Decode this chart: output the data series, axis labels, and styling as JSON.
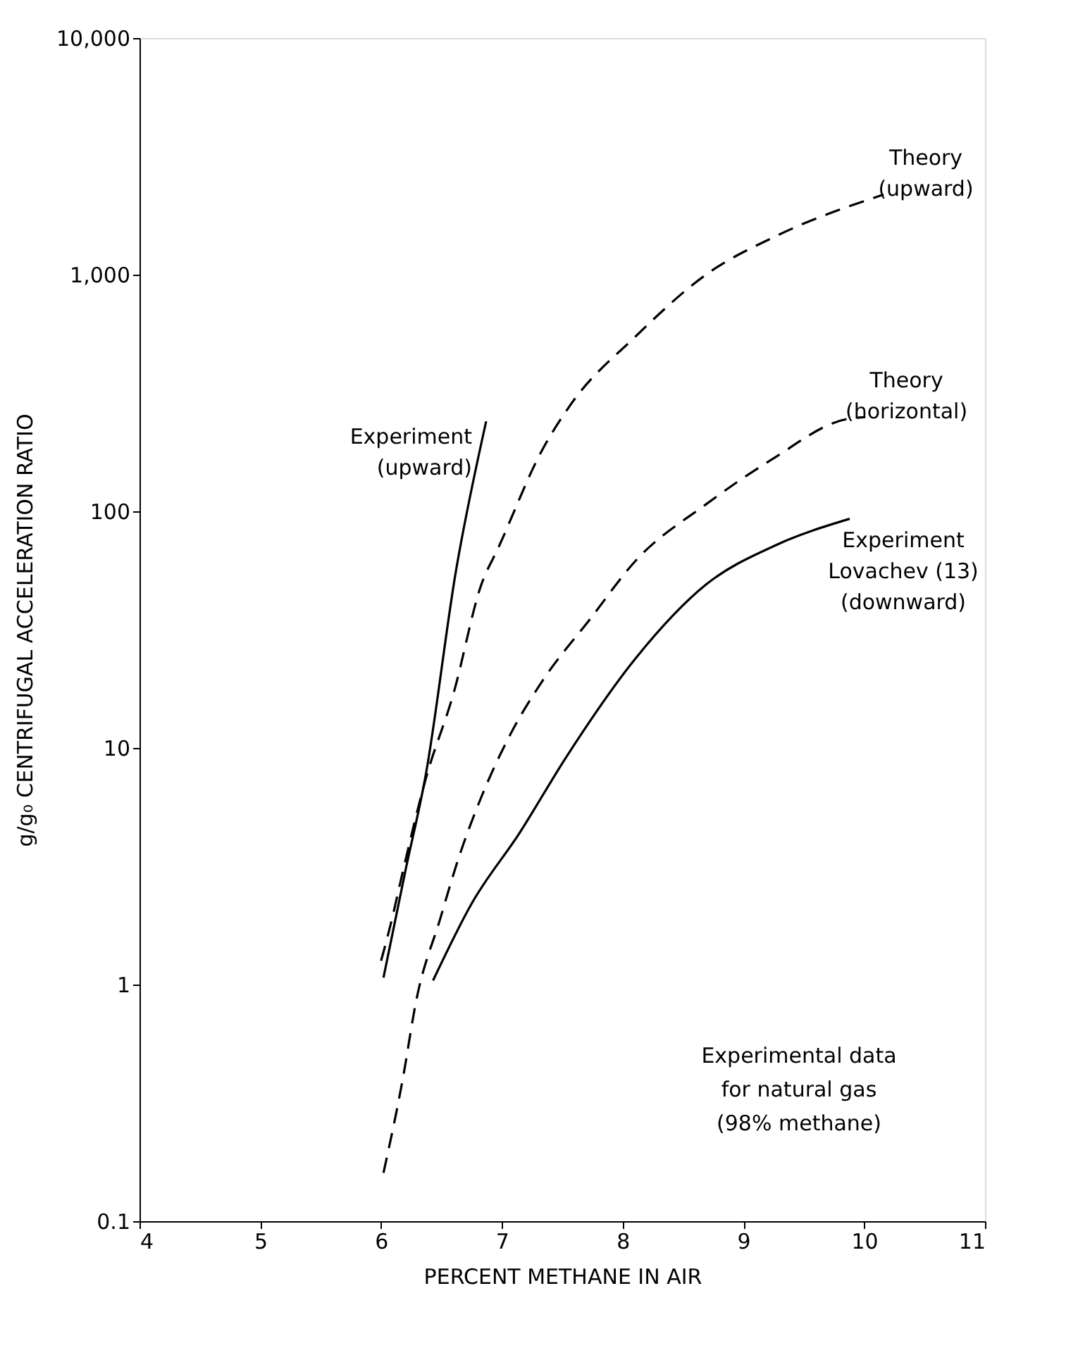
{
  "chart_data": {
    "type": "line",
    "xlabel": "PERCENT METHANE IN AIR",
    "ylabel": "g/g₀ CENTRIFUGAL ACCELERATION RATIO",
    "log": "y",
    "grid": false,
    "marker": "none",
    "xlim": [
      4,
      11
    ],
    "xticks": [
      4,
      5,
      6,
      7,
      8,
      9,
      10,
      11
    ],
    "ylim": [
      0.1,
      10000
    ],
    "yticks": [
      0.1,
      1,
      10,
      100,
      {
        "value": 1000,
        "label": "1,000"
      },
      {
        "value": 10000,
        "label": "10,000"
      }
    ],
    "series": [
      {
        "name": "Experiment\n(upward)",
        "color": "#000000",
        "line_style": "solid",
        "x": [
          6.02,
          6.2,
          6.37,
          6.62,
          6.87
        ],
        "values": [
          1.07,
          3,
          7.7,
          56,
          240
        ]
      },
      {
        "name": "Theory\n(upward)",
        "color": "#000000",
        "line_style": "dashed",
        "x": [
          6.0,
          6.08,
          6.18,
          6.37,
          6.6,
          6.83,
          6.97,
          7.33,
          7.56,
          8.11,
          8.69,
          9.3,
          10.16
        ],
        "values": [
          1.26,
          1.8,
          3,
          7.4,
          17,
          49,
          70,
          180,
          278,
          550,
          1000,
          1480,
          2180
        ]
      },
      {
        "name": "Theory\n(horizontal)",
        "color": "#000000",
        "line_style": "dashed",
        "x": [
          6.02,
          6.18,
          6.29,
          6.49,
          6.64,
          6.83,
          7.07,
          7.33,
          7.73,
          8.11,
          8.69,
          9.23,
          9.85,
          10.0
        ],
        "values": [
          0.16,
          0.4,
          0.85,
          1.9,
          3.4,
          6.2,
          11.4,
          19,
          35,
          62,
          107,
          165,
          245,
          250
        ]
      },
      {
        "name": "Experiment\nLovachev (13)\n(downward)",
        "color": "#000000",
        "line_style": "solid",
        "x": [
          6.43,
          6.75,
          7.15,
          7.53,
          8.11,
          8.69,
          9.27,
          9.88
        ],
        "values": [
          1.04,
          2.2,
          4.4,
          9.1,
          24,
          49,
          72,
          93
        ]
      }
    ],
    "annotations": [
      "Experimental data\nfor natural gas\n(98% methane)"
    ]
  }
}
